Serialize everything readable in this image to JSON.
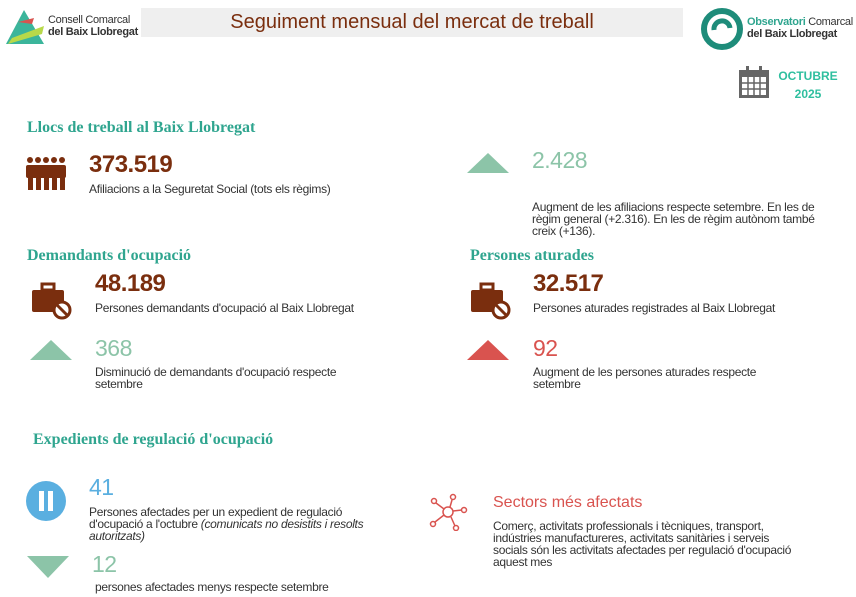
{
  "header": {
    "org_name_line1": "Consell Comarcal",
    "org_name_line2": "del Baix Llobregat",
    "title": "Seguiment mensual del mercat de treball",
    "obs_line1a": "Observatori",
    "obs_line1b": " Comarcal",
    "obs_line2": "del Baix Llobregat",
    "month": "OCTUBRE",
    "year": "2025"
  },
  "llocs": {
    "heading": "Llocs de treball al Baix Llobregat",
    "value": "373.519",
    "label": "Afiliacions a la Seguretat Social (tots els règims)",
    "change": "2.428",
    "change_text": "Augment de les afiliacions respecte setembre.  En les de règim general (+2.316). En les de règim autònom també creix (+136)."
  },
  "demandants": {
    "heading": "Demandants d'ocupació",
    "value": "48.189",
    "label": "Persones demandants d'ocupació al Baix Llobregat",
    "change": "368",
    "change_text": "Disminució de  demandants d'ocupació respecte setembre"
  },
  "aturades": {
    "heading": "Persones aturades",
    "value": "32.517",
    "label": "Persones aturades registrades al Baix Llobregat",
    "change": "92",
    "change_text": "Augment  de les persones aturades respecte setembre"
  },
  "expedients": {
    "heading": "Expedients de regulació d'ocupació",
    "value": "41",
    "label": "Persones afectades per un expedient de regulació d'ocupació a l'octubre ",
    "label_italic": "(comunicats no desistits i resolts autoritzats)",
    "change": "12",
    "change_text": "persones afectades menys respecte setembre"
  },
  "sectors": {
    "heading": "Sectors més afectats",
    "text": "Comerç, activitats professionals i tècniques, transport, indústries manufactureres, activitats sanitàries i serveis socials són les activitats afectades per regulació d'ocupació aquest mes"
  },
  "colors": {
    "brown": "#7a2e0e",
    "teal": "#2fa58f",
    "green": "#8cc4a8",
    "red": "#d9534f",
    "blue": "#5aafe0"
  }
}
